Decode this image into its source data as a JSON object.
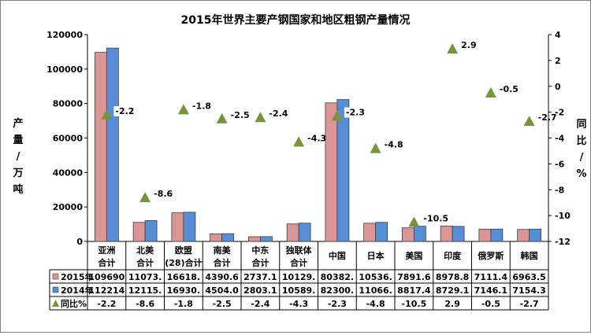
{
  "chart_data": {
    "type": "bar",
    "title": "2015年世界主要产钢国家和地区粗钢产量情况",
    "ylabel_left": "产量/万吨",
    "ylabel_right": "同比/%",
    "ylim_left": [
      0,
      120000
    ],
    "ylim_right": [
      -12,
      4
    ],
    "yticks_left": [
      "0",
      "20000",
      "40000",
      "60000",
      "80000",
      "100000",
      "120000"
    ],
    "yticks_right": [
      "-12",
      "-10",
      "-8",
      "-6",
      "-4",
      "-2",
      "0",
      "2",
      "4"
    ],
    "categories": [
      [
        "亚洲",
        "合计"
      ],
      [
        "北美",
        "合计"
      ],
      [
        "欧盟",
        "(28)合计"
      ],
      [
        "南美",
        "合计"
      ],
      [
        "中东",
        "合计"
      ],
      [
        "独联体",
        "合计"
      ],
      [
        "中国"
      ],
      [
        "日本"
      ],
      [
        "美国"
      ],
      [
        "印度"
      ],
      [
        "俄罗斯"
      ],
      [
        "韩国"
      ]
    ],
    "series": [
      {
        "name": "2015年",
        "color": "#d99694",
        "values": [
          109690,
          11073,
          16618,
          4390.6,
          2737.1,
          10129,
          80382,
          10536,
          7891.6,
          8978.8,
          7111.4,
          6963.5
        ],
        "labels": [
          "109690",
          "11073.",
          "16618.",
          "4390.6",
          "2737.1",
          "10129.",
          "80382.",
          "10536.",
          "7891.6",
          "8978.8",
          "7111.4",
          "6963.5"
        ]
      },
      {
        "name": "2014年",
        "color": "#558ed5",
        "values": [
          112214,
          12115,
          16930,
          4504.0,
          2803.1,
          10589,
          82300,
          11066,
          8817.4,
          8729.1,
          7146.1,
          7154.3
        ],
        "labels": [
          "112214",
          "12115.",
          "16930.",
          "4504.0",
          "2803.1",
          "10589.",
          "82300.",
          "11066.",
          "8817.4",
          "8729.1",
          "7146.1",
          "7154.3"
        ]
      },
      {
        "name": "同比%",
        "color": "#77933c",
        "axis": "right",
        "values": [
          -2.2,
          -8.6,
          -1.8,
          -2.5,
          -2.4,
          -4.3,
          -2.3,
          -4.8,
          -10.5,
          2.9,
          -0.5,
          -2.7
        ],
        "labels": [
          "-2.2",
          "-8.6",
          "-1.8",
          "-2.5",
          "-2.4",
          "-4.3",
          "-2.3",
          "-4.8",
          "-10.5",
          "2.9",
          "-0.5",
          "-2.7"
        ]
      }
    ],
    "grid": false,
    "legend": "table"
  }
}
